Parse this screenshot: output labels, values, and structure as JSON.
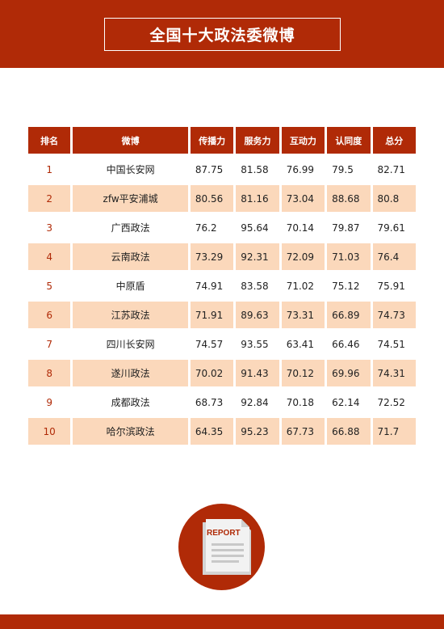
{
  "title": "全国十大政法委微博",
  "table": {
    "headers": [
      "排名",
      "微博",
      "传播力",
      "服务力",
      "互动力",
      "认同度",
      "总分"
    ],
    "rows": [
      {
        "rank": "1",
        "name": "中国长安网",
        "spread": "87.75",
        "service": "81.58",
        "interaction": "76.99",
        "recognition": "79.5",
        "total": "82.71"
      },
      {
        "rank": "2",
        "name": "zfw平安浦城",
        "spread": "80.56",
        "service": "81.16",
        "interaction": "73.04",
        "recognition": "88.68",
        "total": "80.8"
      },
      {
        "rank": "3",
        "name": "广西政法",
        "spread": "76.2",
        "service": "95.64",
        "interaction": "70.14",
        "recognition": "79.87",
        "total": "79.61"
      },
      {
        "rank": "4",
        "name": "云南政法",
        "spread": "73.29",
        "service": "92.31",
        "interaction": "72.09",
        "recognition": "71.03",
        "total": "76.4"
      },
      {
        "rank": "5",
        "name": "中原盾",
        "spread": "74.91",
        "service": "83.58",
        "interaction": "71.02",
        "recognition": "75.12",
        "total": "75.91"
      },
      {
        "rank": "6",
        "name": "江苏政法",
        "spread": "71.91",
        "service": "89.63",
        "interaction": "73.31",
        "recognition": "66.89",
        "total": "74.73"
      },
      {
        "rank": "7",
        "name": "四川长安网",
        "spread": "74.57",
        "service": "93.55",
        "interaction": "63.41",
        "recognition": "66.46",
        "total": "74.51"
      },
      {
        "rank": "8",
        "name": "遂川政法",
        "spread": "70.02",
        "service": "91.43",
        "interaction": "70.12",
        "recognition": "69.96",
        "total": "74.31"
      },
      {
        "rank": "9",
        "name": "成都政法",
        "spread": "68.73",
        "service": "92.84",
        "interaction": "70.18",
        "recognition": "62.14",
        "total": "72.52"
      },
      {
        "rank": "10",
        "name": "哈尔滨政法",
        "spread": "64.35",
        "service": "95.23",
        "interaction": "67.73",
        "recognition": "66.88",
        "total": "71.7"
      }
    ]
  },
  "report_icon": {
    "label": "REPORT",
    "icon": "report-document-icon"
  },
  "colors": {
    "accent": "#b02a07",
    "row_alt": "#fbd8bb",
    "paper": "#f2f2f2",
    "paper_lines": "#c8c8c8"
  }
}
